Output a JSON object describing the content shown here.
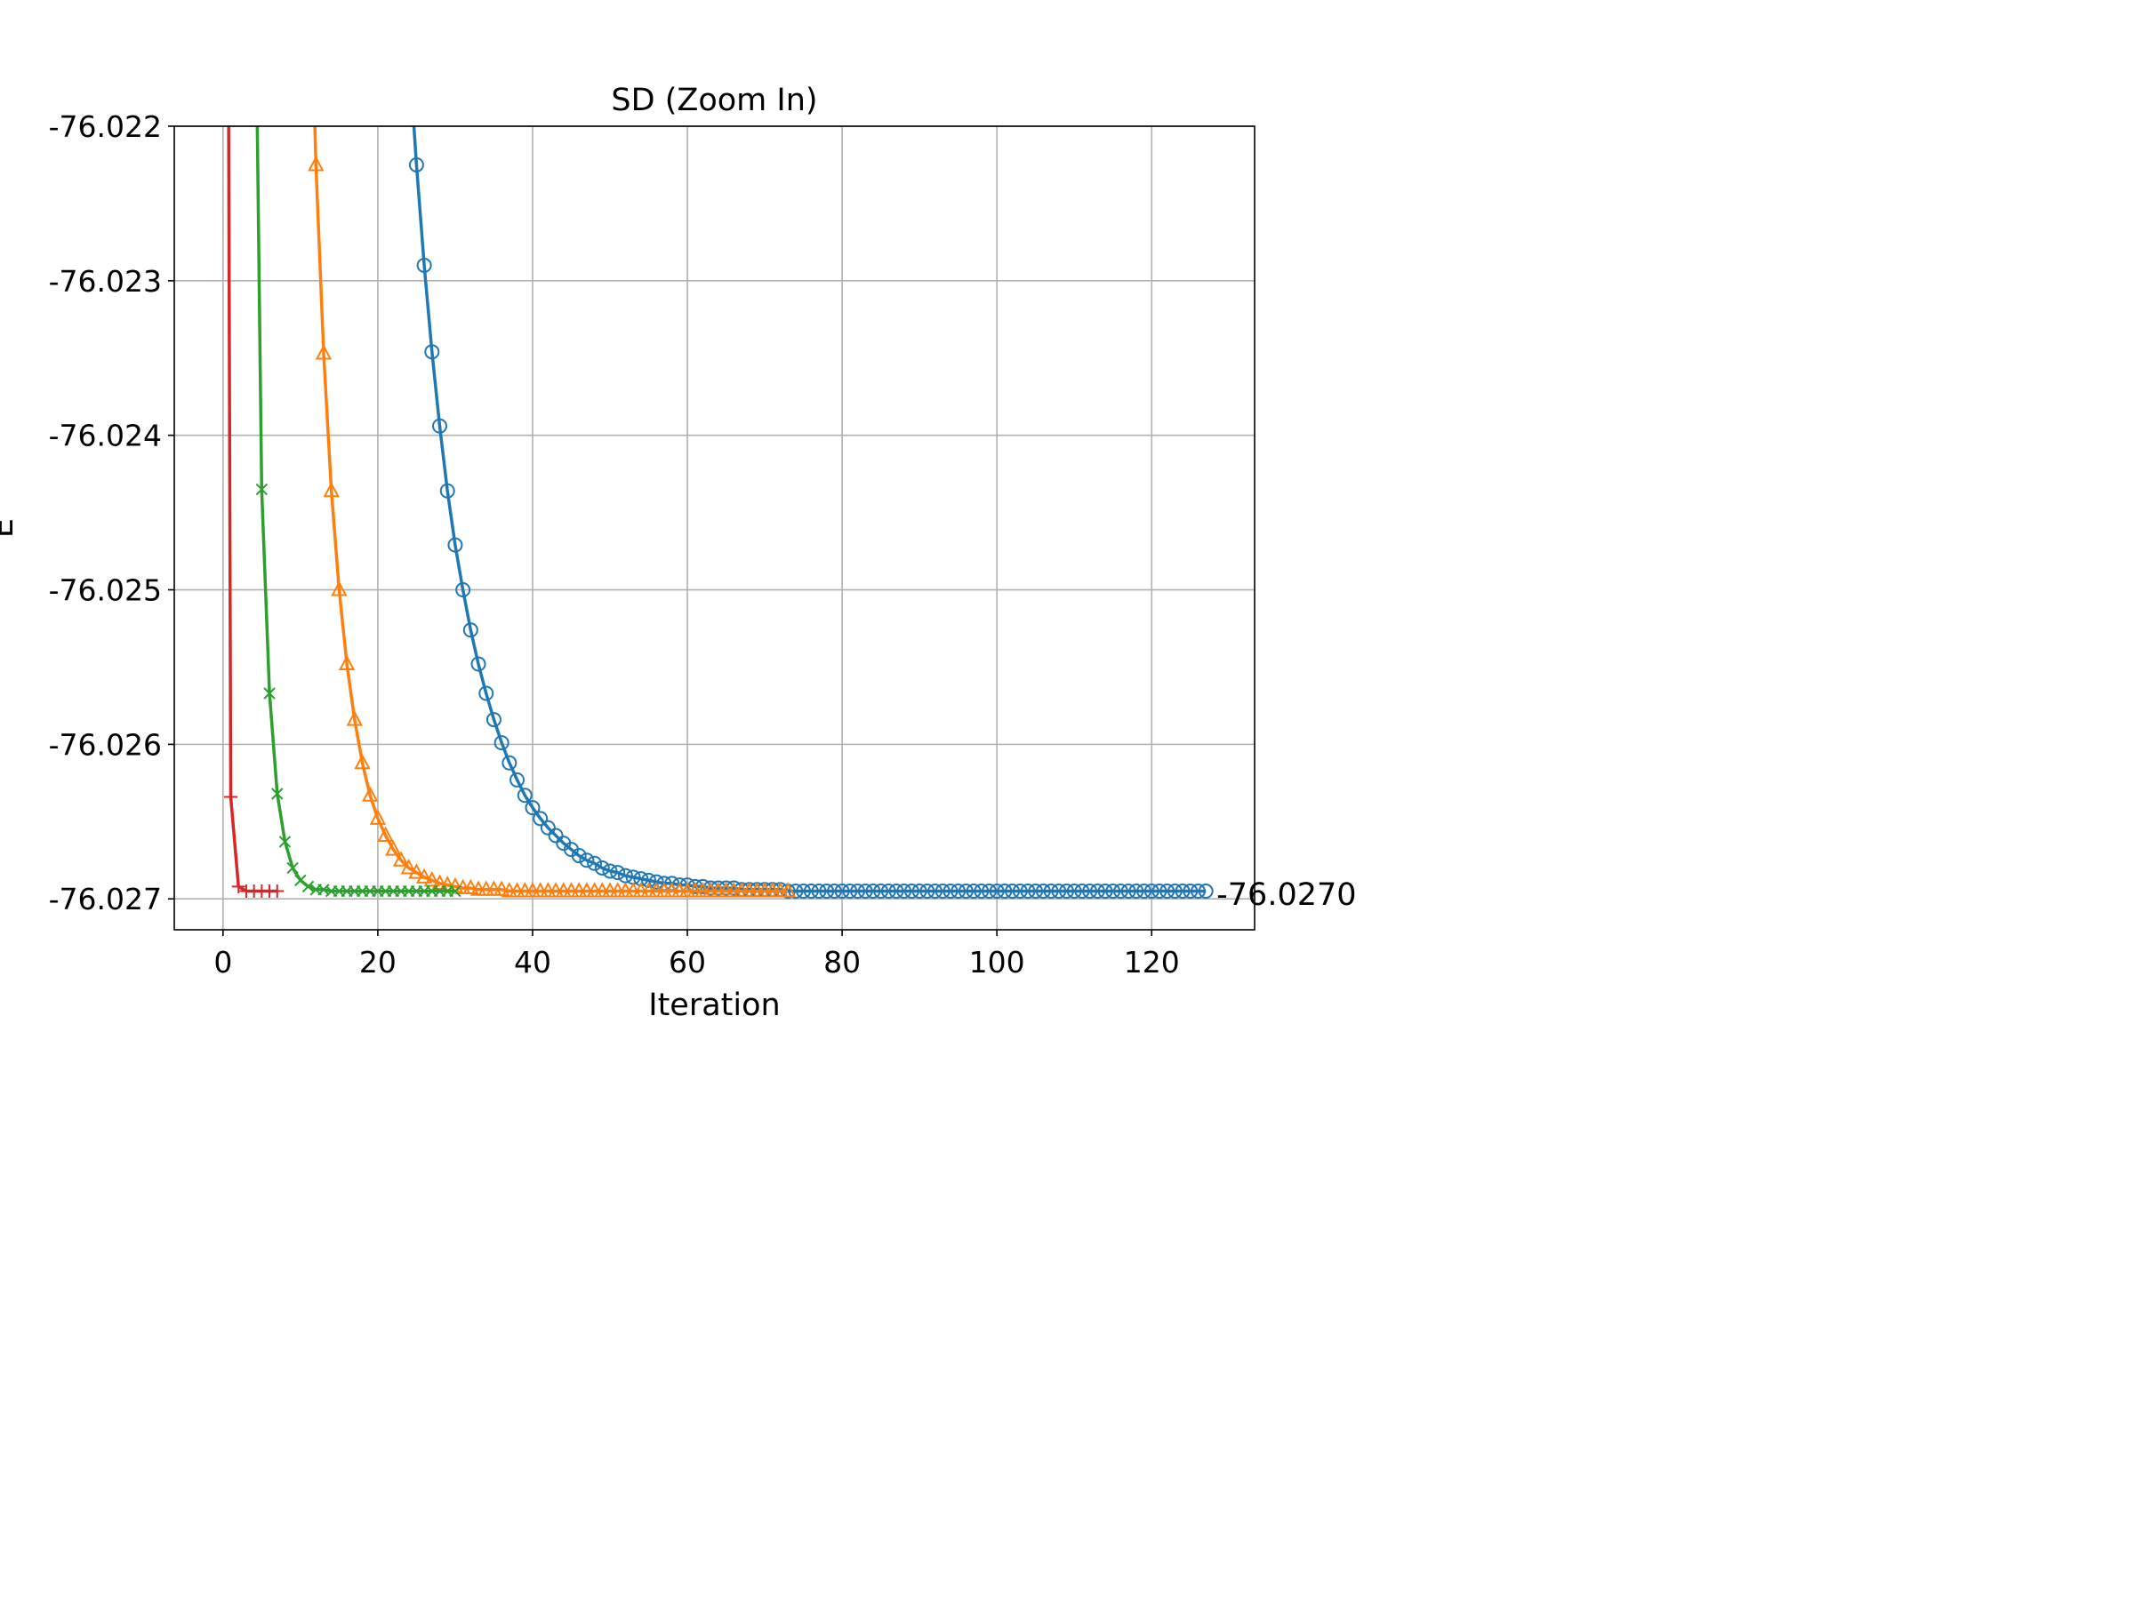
{
  "chart_data": {
    "type": "line",
    "title": "SD (Zoom In)",
    "xlabel": "Iteration",
    "ylabel": "E",
    "xlim": [
      -6.3,
      133.3
    ],
    "ylim": [
      -76.0272,
      -76.022
    ],
    "xticks": [
      0,
      20,
      40,
      60,
      80,
      100,
      120
    ],
    "xtick_labels": [
      "0",
      "20",
      "40",
      "60",
      "80",
      "100",
      "120"
    ],
    "yticks": [
      -76.022,
      -76.023,
      -76.024,
      -76.025,
      -76.026,
      -76.027
    ],
    "ytick_labels": [
      "-76.022",
      "-76.023",
      "-76.024",
      "-76.025",
      "-76.026",
      "-76.027"
    ],
    "grid": true,
    "annotation": {
      "text": "-76.0270",
      "x": 127,
      "y": -76.02697
    },
    "series": [
      {
        "color": "#1f77b4",
        "marker": "circle",
        "x": [
          25,
          26,
          27,
          28,
          29,
          30,
          31,
          32,
          33,
          34,
          35,
          36,
          37,
          38,
          39,
          40,
          41,
          42,
          43,
          44,
          45,
          46,
          47,
          48,
          49,
          50,
          51,
          52,
          53,
          54,
          55,
          56,
          57,
          58,
          59,
          60,
          61,
          62,
          63,
          64,
          65,
          66,
          67,
          68,
          69,
          70,
          71,
          72,
          73,
          74,
          75,
          76,
          77,
          78,
          79,
          80,
          81,
          82,
          83,
          84,
          85,
          86,
          87,
          88,
          89,
          90,
          91,
          92,
          93,
          94,
          95,
          96,
          97,
          98,
          99,
          100,
          101,
          102,
          103,
          104,
          105,
          106,
          107,
          108,
          109,
          110,
          111,
          112,
          113,
          114,
          115,
          116,
          117,
          118,
          119,
          120,
          121,
          122,
          123,
          124,
          125,
          126,
          127
        ],
        "y": [
          -76.02225,
          -76.0229,
          -76.02346,
          -76.02394,
          -76.02436,
          -76.02471,
          -76.025,
          -76.02526,
          -76.02548,
          -76.02567,
          -76.02584,
          -76.02599,
          -76.02612,
          -76.02623,
          -76.02633,
          -76.02641,
          -76.02648,
          -76.02654,
          -76.02659,
          -76.02664,
          -76.02668,
          -76.02672,
          -76.02675,
          -76.02677,
          -76.0268,
          -76.02682,
          -76.02683,
          -76.02685,
          -76.02686,
          -76.02687,
          -76.02688,
          -76.02689,
          -76.0269,
          -76.0269,
          -76.02691,
          -76.02691,
          -76.02692,
          -76.02692,
          -76.02693,
          -76.02693,
          -76.02693,
          -76.02693,
          -76.02694,
          -76.02694,
          -76.02694,
          -76.02694,
          -76.02694,
          -76.02694,
          -76.02695,
          -76.02695,
          -76.02695,
          -76.02695,
          -76.02695,
          -76.02695,
          -76.02695,
          -76.02695,
          -76.02695,
          -76.02695,
          -76.02695,
          -76.02695,
          -76.02695,
          -76.02695,
          -76.02695,
          -76.02695,
          -76.02695,
          -76.02695,
          -76.02695,
          -76.02695,
          -76.02695,
          -76.02695,
          -76.02695,
          -76.02695,
          -76.02695,
          -76.02695,
          -76.02695,
          -76.02695,
          -76.02695,
          -76.02695,
          -76.02695,
          -76.02695,
          -76.02695,
          -76.02695,
          -76.02695,
          -76.02695,
          -76.02695,
          -76.02695,
          -76.02695,
          -76.02695,
          -76.02695,
          -76.02695,
          -76.02695,
          -76.02695,
          -76.02695,
          -76.02695,
          -76.02695,
          -76.02695,
          -76.02695,
          -76.02695,
          -76.02695,
          -76.02695,
          -76.02695,
          -76.02695,
          -76.02695
        ],
        "y_above_top_at_x": [
          24,
          -76.0215
        ]
      },
      {
        "color": "#ff7f0e",
        "marker": "triangle",
        "x": [
          12,
          13,
          14,
          15,
          16,
          17,
          18,
          19,
          20,
          21,
          22,
          23,
          24,
          25,
          26,
          27,
          28,
          29,
          30,
          31,
          32,
          33,
          34,
          35,
          36,
          37,
          38,
          39,
          40,
          41,
          42,
          43,
          44,
          45,
          46,
          47,
          48,
          49,
          50,
          51,
          52,
          53,
          54,
          55,
          56,
          57,
          58,
          59,
          60,
          61,
          62,
          63,
          64,
          65,
          66,
          67,
          68,
          69,
          70,
          71,
          72,
          73
        ],
        "y": [
          -76.02225,
          -76.02347,
          -76.02436,
          -76.025,
          -76.02548,
          -76.02584,
          -76.02612,
          -76.02633,
          -76.02648,
          -76.02659,
          -76.02668,
          -76.02675,
          -76.0268,
          -76.02683,
          -76.02686,
          -76.02688,
          -76.0269,
          -76.02691,
          -76.02692,
          -76.02693,
          -76.02693,
          -76.02694,
          -76.02694,
          -76.02694,
          -76.02694,
          -76.02695,
          -76.02695,
          -76.02695,
          -76.02695,
          -76.02695,
          -76.02695,
          -76.02695,
          -76.02695,
          -76.02695,
          -76.02695,
          -76.02695,
          -76.02695,
          -76.02695,
          -76.02695,
          -76.02695,
          -76.02695,
          -76.02695,
          -76.02695,
          -76.02695,
          -76.02695,
          -76.02695,
          -76.02695,
          -76.02695,
          -76.02695,
          -76.02695,
          -76.02695,
          -76.02695,
          -76.02695,
          -76.02695,
          -76.02695,
          -76.02695,
          -76.02695,
          -76.02695,
          -76.02695,
          -76.02695,
          -76.02695,
          -76.02695
        ],
        "y_above_top_at_x": [
          11.6,
          -76.0215
        ]
      },
      {
        "color": "#2ca02c",
        "marker": "x",
        "x": [
          5,
          6,
          7,
          8,
          9,
          10,
          11,
          12,
          13,
          14,
          15,
          16,
          17,
          18,
          19,
          20,
          21,
          22,
          23,
          24,
          25,
          26,
          27,
          28,
          29,
          30
        ],
        "y": [
          -76.02435,
          -76.02567,
          -76.02632,
          -76.02663,
          -76.0268,
          -76.02688,
          -76.02692,
          -76.02694,
          -76.02694,
          -76.02695,
          -76.02695,
          -76.02695,
          -76.02695,
          -76.02695,
          -76.02695,
          -76.02695,
          -76.02695,
          -76.02695,
          -76.02695,
          -76.02695,
          -76.02695,
          -76.02695,
          -76.02695,
          -76.02695,
          -76.02695,
          -76.02695
        ],
        "y_above_top_at_x": [
          4.3,
          -76.0215
        ]
      },
      {
        "color": "#d62728",
        "marker": "plus",
        "x": [
          1,
          2,
          3,
          4,
          5,
          6,
          7
        ],
        "y": [
          -76.02634,
          -76.02692,
          -76.02695,
          -76.02695,
          -76.02695,
          -76.02695,
          -76.02695
        ],
        "y_above_top_at_x": [
          0.7,
          -76.0215
        ]
      }
    ]
  }
}
